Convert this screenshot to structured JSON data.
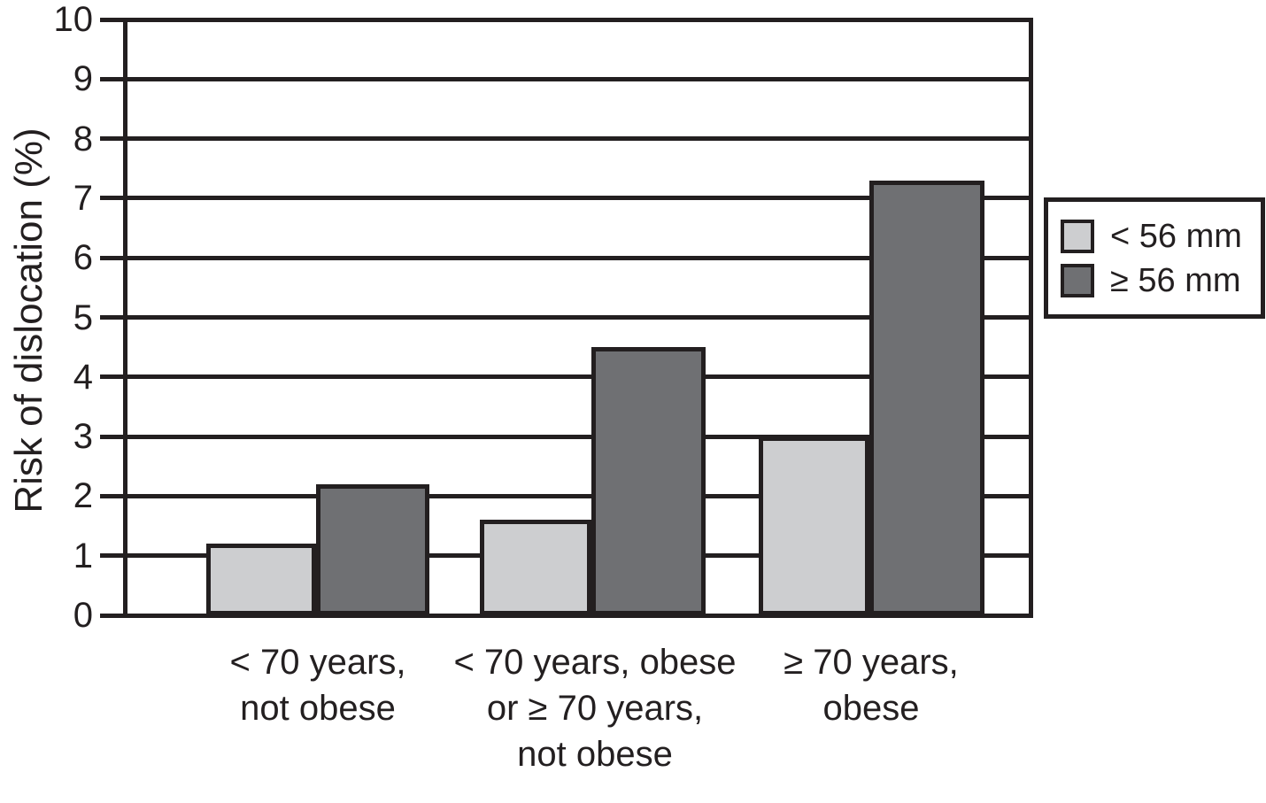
{
  "chart_data": {
    "type": "bar",
    "title": "",
    "xlabel": "",
    "ylabel": "Risk of dislocation (%)",
    "ylim": [
      0,
      10
    ],
    "yticks": [
      0,
      1,
      2,
      3,
      4,
      5,
      6,
      7,
      8,
      9,
      10
    ],
    "grid": "horizontal gridlines at every integer, black",
    "legend_position": "outside right, boxed",
    "categories": [
      "< 70 years,\nnot obese",
      "< 70 years, obese\nor ≥ 70 years,\nnot obese",
      "≥ 70 years,\nobese"
    ],
    "series": [
      {
        "name": "< 56 mm",
        "color": "#cdced0",
        "values": [
          1.2,
          1.6,
          3.0
        ]
      },
      {
        "name": "≥ 56 mm",
        "color": "#6f7073",
        "values": [
          2.2,
          4.5,
          7.3
        ]
      }
    ]
  },
  "legend": {
    "items": [
      {
        "label": "< 56 mm",
        "swatch_color": "#cdced0"
      },
      {
        "label": "≥ 56 mm",
        "swatch_color": "#6f7073"
      }
    ]
  },
  "colors": {
    "background": "#ffffff",
    "line_black": "#231f20",
    "light_series": "#cdced0",
    "dark_series": "#6f7073"
  }
}
